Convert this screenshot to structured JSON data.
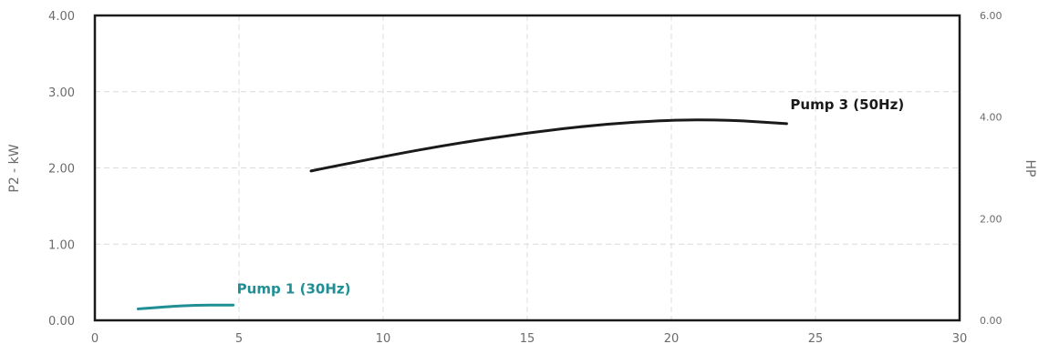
{
  "chart_data": {
    "type": "line",
    "ylabel": "P2 - kW",
    "y2label": "HP",
    "xlim": [
      0,
      30
    ],
    "ylim": [
      0,
      4
    ],
    "y2lim": [
      0,
      6
    ],
    "x_ticks": [
      "0",
      "5",
      "10",
      "15",
      "20",
      "25",
      "30"
    ],
    "y_ticks": [
      "0.00",
      "1.00",
      "2.00",
      "3.00",
      "4.00"
    ],
    "y2_ticks": [
      "0.00",
      "2.00",
      "4.00",
      "6.00"
    ],
    "grid": true,
    "series": [
      {
        "name": "Pump 1 (30Hz)",
        "color": "#1f8f95",
        "x": [
          1.5,
          2.5,
          3.5,
          4.5,
          4.8
        ],
        "y": [
          0.15,
          0.18,
          0.2,
          0.2,
          0.2
        ]
      },
      {
        "name": "Pump 3 (50Hz)",
        "color": "#1a1a1a",
        "x": [
          7.5,
          10,
          12.5,
          15,
          17.5,
          20,
          22,
          24
        ],
        "y": [
          1.96,
          2.15,
          2.32,
          2.46,
          2.57,
          2.63,
          2.63,
          2.58
        ]
      }
    ]
  }
}
